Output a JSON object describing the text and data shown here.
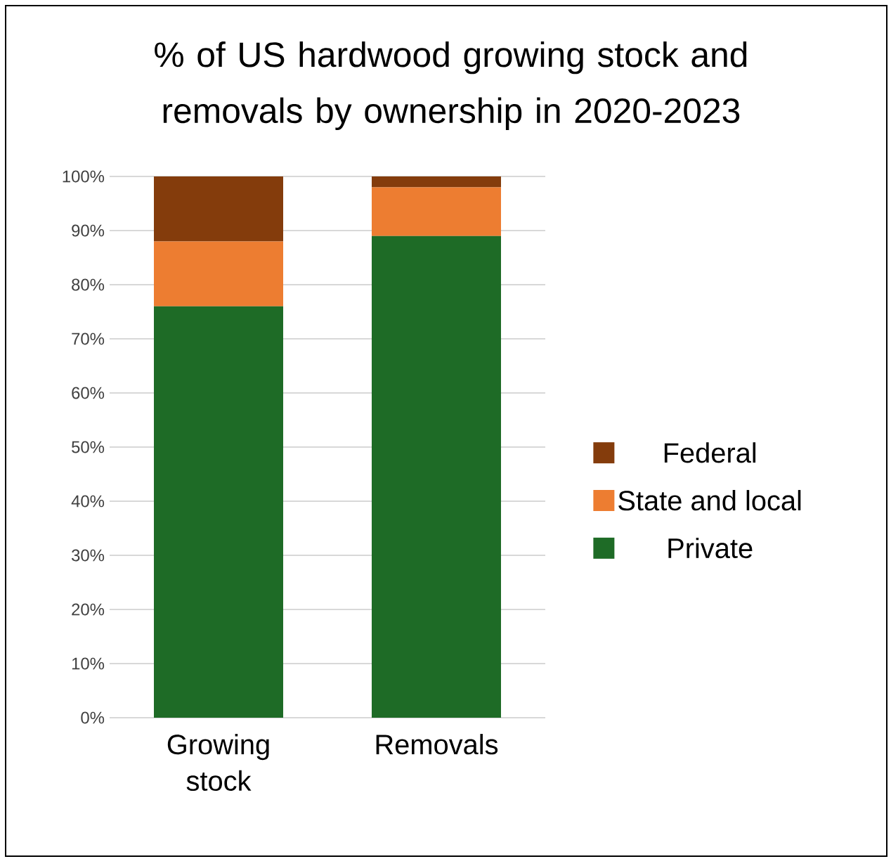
{
  "chart_data": {
    "type": "bar",
    "title": "% of US hardwood growing stock and removals by ownership in 2020-2023",
    "categories": [
      "Growing stock",
      "Removals"
    ],
    "stacked": true,
    "series": [
      {
        "name": "Private",
        "color": "#1e6b26",
        "values": [
          76,
          89
        ]
      },
      {
        "name": "State and local",
        "color": "#ed7d31",
        "values": [
          12,
          9
        ]
      },
      {
        "name": "Federal",
        "color": "#843c0c",
        "values": [
          12,
          2
        ]
      }
    ],
    "ylim": [
      0,
      100
    ],
    "yticks": [
      {
        "value": 0,
        "label": "0%"
      },
      {
        "value": 10,
        "label": "10%"
      },
      {
        "value": 20,
        "label": "20%"
      },
      {
        "value": 30,
        "label": "30%"
      },
      {
        "value": 40,
        "label": "40%"
      },
      {
        "value": 50,
        "label": "50%"
      },
      {
        "value": 60,
        "label": "60%"
      },
      {
        "value": 70,
        "label": "70%"
      },
      {
        "value": 80,
        "label": "80%"
      },
      {
        "value": 90,
        "label": "90%"
      },
      {
        "value": 100,
        "label": "100%"
      }
    ],
    "grid": "y",
    "legend": "right"
  }
}
